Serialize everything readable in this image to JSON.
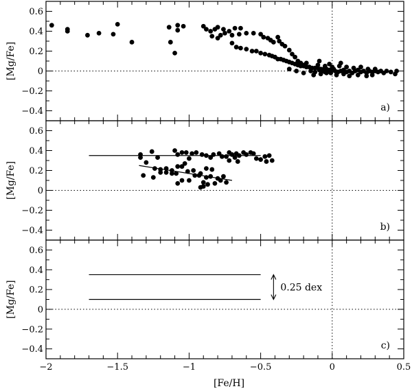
{
  "chart_data": {
    "type": "scatter",
    "xlabel": "[Fe/H]",
    "xlim": [
      -2,
      0.5
    ],
    "xticks": [
      -2,
      -1.5,
      -1,
      -0.5,
      0,
      0.5
    ],
    "xtick_labels": [
      "−2",
      "−1.5",
      "−1",
      "−0.5",
      "0",
      "0.5"
    ],
    "ref_lines": {
      "x": 0,
      "y": 0,
      "style": "dotted"
    },
    "panels": [
      {
        "label": "a)",
        "ylabel": "[Mg/Fe]",
        "ylim": [
          -0.5,
          0.7
        ],
        "yticks": [
          -0.4,
          -0.2,
          0,
          0.2,
          0.4,
          0.6
        ],
        "ytick_labels": [
          "−0.4",
          "−0.2",
          "0",
          "0.2",
          "0.4",
          "0.6"
        ],
        "points": [
          [
            -1.96,
            0.46
          ],
          [
            -1.85,
            0.42
          ],
          [
            -1.85,
            0.4
          ],
          [
            -1.71,
            0.36
          ],
          [
            -1.63,
            0.38
          ],
          [
            -1.53,
            0.37
          ],
          [
            -1.5,
            0.47
          ],
          [
            -1.4,
            0.29
          ],
          [
            -1.14,
            0.44
          ],
          [
            -1.13,
            0.29
          ],
          [
            -1.1,
            0.18
          ],
          [
            -1.08,
            0.46
          ],
          [
            -1.08,
            0.41
          ],
          [
            -1.04,
            0.45
          ],
          [
            -0.9,
            0.45
          ],
          [
            -0.88,
            0.42
          ],
          [
            -0.85,
            0.4
          ],
          [
            -0.82,
            0.42
          ],
          [
            -0.8,
            0.44
          ],
          [
            -0.76,
            0.42
          ],
          [
            -0.72,
            0.4
          ],
          [
            -0.68,
            0.43
          ],
          [
            -0.64,
            0.43
          ],
          [
            -0.6,
            0.38
          ],
          [
            -0.84,
            0.35
          ],
          [
            -0.8,
            0.33
          ],
          [
            -0.78,
            0.36
          ],
          [
            -0.75,
            0.38
          ],
          [
            -0.7,
            0.36
          ],
          [
            -0.65,
            0.37
          ],
          [
            -0.55,
            0.38
          ],
          [
            -0.5,
            0.37
          ],
          [
            -0.48,
            0.34
          ],
          [
            -0.45,
            0.33
          ],
          [
            -0.43,
            0.31
          ],
          [
            -0.41,
            0.29
          ],
          [
            -0.38,
            0.34
          ],
          [
            -0.37,
            0.3
          ],
          [
            -0.35,
            0.27
          ],
          [
            -0.33,
            0.25
          ],
          [
            -0.3,
            0.21
          ],
          [
            -0.28,
            0.17
          ],
          [
            -0.26,
            0.14
          ],
          [
            -0.24,
            0.1
          ],
          [
            -0.22,
            0.08
          ],
          [
            -0.2,
            0.06
          ],
          [
            -0.7,
            0.28
          ],
          [
            -0.67,
            0.24
          ],
          [
            -0.64,
            0.23
          ],
          [
            -0.6,
            0.22
          ],
          [
            -0.56,
            0.2
          ],
          [
            -0.53,
            0.2
          ],
          [
            -0.5,
            0.18
          ],
          [
            -0.47,
            0.17
          ],
          [
            -0.44,
            0.16
          ],
          [
            -0.42,
            0.15
          ],
          [
            -0.4,
            0.14
          ],
          [
            -0.38,
            0.12
          ],
          [
            -0.36,
            0.12
          ],
          [
            -0.34,
            0.11
          ],
          [
            -0.32,
            0.1
          ],
          [
            -0.3,
            0.09
          ],
          [
            -0.28,
            0.08
          ],
          [
            -0.26,
            0.07
          ],
          [
            -0.24,
            0.06
          ],
          [
            -0.22,
            0.05
          ],
          [
            -0.2,
            0.05
          ],
          [
            -0.18,
            0.04
          ],
          [
            -0.16,
            0.04
          ],
          [
            -0.14,
            0.03
          ],
          [
            -0.12,
            0.03
          ],
          [
            -0.1,
            0.03
          ],
          [
            -0.08,
            0.02
          ],
          [
            -0.06,
            0.02
          ],
          [
            -0.04,
            0.02
          ],
          [
            -0.02,
            0.01
          ],
          [
            -0.3,
            0.02
          ],
          [
            -0.25,
            0.0
          ],
          [
            -0.2,
            -0.02
          ],
          [
            -0.15,
            0.0
          ],
          [
            -0.12,
            -0.01
          ],
          [
            -0.09,
            0.01
          ],
          [
            -0.07,
            0.0
          ],
          [
            -0.05,
            -0.01
          ],
          [
            -0.03,
            0.0
          ],
          [
            -0.01,
            -0.02
          ],
          [
            0.0,
            0.01
          ],
          [
            0.02,
            0.0
          ],
          [
            0.04,
            -0.01
          ],
          [
            0.06,
            0.0
          ],
          [
            0.08,
            0.01
          ],
          [
            0.1,
            -0.01
          ],
          [
            0.12,
            0.0
          ],
          [
            0.14,
            -0.02
          ],
          [
            0.16,
            0.0
          ],
          [
            0.18,
            0.01
          ],
          [
            0.2,
            -0.01
          ],
          [
            0.22,
            0.0
          ],
          [
            0.24,
            -0.02
          ],
          [
            0.26,
            0.0
          ],
          [
            0.28,
            -0.01
          ],
          [
            0.3,
            0.0
          ],
          [
            0.32,
            -0.01
          ],
          [
            0.34,
            0.0
          ],
          [
            0.36,
            -0.02
          ],
          [
            0.38,
            0.0
          ],
          [
            0.41,
            -0.01
          ],
          [
            0.44,
            -0.03
          ],
          [
            0.45,
            0.0
          ],
          [
            -0.1,
            0.06
          ],
          [
            -0.05,
            0.05
          ],
          [
            0.0,
            0.04
          ],
          [
            0.05,
            0.05
          ],
          [
            0.1,
            0.04
          ],
          [
            0.15,
            0.03
          ],
          [
            0.2,
            0.04
          ],
          [
            0.25,
            0.02
          ],
          [
            0.3,
            0.02
          ],
          [
            -0.13,
            -0.04
          ],
          [
            -0.08,
            -0.03
          ],
          [
            0.03,
            -0.04
          ],
          [
            0.08,
            -0.03
          ],
          [
            0.12,
            -0.05
          ],
          [
            0.18,
            -0.04
          ],
          [
            0.24,
            -0.05
          ],
          [
            0.28,
            -0.04
          ],
          [
            -0.02,
            0.07
          ],
          [
            0.06,
            0.08
          ],
          [
            -0.18,
            0.08
          ],
          [
            -0.09,
            0.1
          ],
          [
            0.01,
            0.02
          ],
          [
            -0.04,
            -0.02
          ]
        ]
      },
      {
        "label": "b)",
        "ylabel": "[Mg/Fe]",
        "ylim": [
          -0.5,
          0.7
        ],
        "yticks": [
          -0.4,
          -0.2,
          0,
          0.2,
          0.4,
          0.6
        ],
        "ytick_labels": [
          "−0.4",
          "−0.2",
          "0",
          "0.2",
          "0.4",
          "0.6"
        ],
        "lines": [
          {
            "x": [
              -1.7,
              -0.5
            ],
            "y": [
              0.35,
              0.35
            ]
          },
          {
            "x": [
              -1.35,
              -0.7
            ],
            "y": [
              0.25,
              0.1
            ]
          }
        ],
        "points": [
          [
            -1.34,
            0.36
          ],
          [
            -1.34,
            0.33
          ],
          [
            -1.26,
            0.39
          ],
          [
            -1.22,
            0.33
          ],
          [
            -1.1,
            0.4
          ],
          [
            -1.08,
            0.36
          ],
          [
            -1.05,
            0.38
          ],
          [
            -1.02,
            0.38
          ],
          [
            -0.98,
            0.37
          ],
          [
            -0.95,
            0.38
          ],
          [
            -0.91,
            0.36
          ],
          [
            -0.88,
            0.35
          ],
          [
            -0.83,
            0.36
          ],
          [
            -0.79,
            0.37
          ],
          [
            -0.77,
            0.34
          ],
          [
            -0.74,
            0.34
          ],
          [
            -0.72,
            0.38
          ],
          [
            -0.7,
            0.36
          ],
          [
            -0.67,
            0.37
          ],
          [
            -0.65,
            0.35
          ],
          [
            -0.62,
            0.38
          ],
          [
            -0.6,
            0.36
          ],
          [
            -0.57,
            0.38
          ],
          [
            -0.55,
            0.37
          ],
          [
            -0.53,
            0.32
          ],
          [
            -0.5,
            0.31
          ],
          [
            -0.47,
            0.34
          ],
          [
            -0.46,
            0.29
          ],
          [
            -0.44,
            0.35
          ],
          [
            -0.42,
            0.3
          ],
          [
            -1.0,
            0.32
          ],
          [
            -0.85,
            0.33
          ],
          [
            -0.68,
            0.33
          ],
          [
            -0.66,
            0.29
          ],
          [
            -0.72,
            0.3
          ],
          [
            -1.3,
            0.28
          ],
          [
            -1.24,
            0.22
          ],
          [
            -1.2,
            0.21
          ],
          [
            -1.16,
            0.22
          ],
          [
            -1.12,
            0.2
          ],
          [
            -1.08,
            0.24
          ],
          [
            -1.05,
            0.24
          ],
          [
            -1.01,
            0.19
          ],
          [
            -0.97,
            0.2
          ],
          [
            -0.92,
            0.17
          ],
          [
            -0.88,
            0.13
          ],
          [
            -0.85,
            0.14
          ],
          [
            -0.8,
            0.12
          ],
          [
            -0.76,
            0.14
          ],
          [
            -1.32,
            0.15
          ],
          [
            -1.25,
            0.13
          ],
          [
            -1.16,
            0.18
          ],
          [
            -1.09,
            0.17
          ],
          [
            -1.05,
            0.1
          ],
          [
            -1.0,
            0.1
          ],
          [
            -0.96,
            0.15
          ],
          [
            -0.93,
            0.15
          ],
          [
            -0.9,
            0.08
          ],
          [
            -0.87,
            0.06
          ],
          [
            -0.92,
            0.03
          ],
          [
            -0.9,
            0.04
          ],
          [
            -0.82,
            0.07
          ],
          [
            -0.78,
            0.1
          ],
          [
            -0.74,
            0.08
          ],
          [
            -1.08,
            0.07
          ],
          [
            -1.12,
            0.17
          ],
          [
            -1.2,
            0.18
          ],
          [
            -0.84,
            0.21
          ],
          [
            -0.88,
            0.22
          ],
          [
            -1.03,
            0.27
          ]
        ]
      },
      {
        "label": "c)",
        "ylabel": "[Mg/Fe]",
        "ylim": [
          -0.5,
          0.7
        ],
        "yticks": [
          -0.4,
          -0.2,
          0,
          0.2,
          0.4,
          0.6
        ],
        "ytick_labels": [
          "−0.4",
          "−0.2",
          "0",
          "0.2",
          "0.4",
          "0.6"
        ],
        "lines": [
          {
            "x": [
              -1.7,
              -0.5
            ],
            "y": [
              0.35,
              0.35
            ]
          },
          {
            "x": [
              -1.7,
              -0.5
            ],
            "y": [
              0.1,
              0.1
            ]
          }
        ],
        "annotation": {
          "text": "0.25 dex",
          "arrow_x": -0.41,
          "arrow_y": [
            0.35,
            0.1
          ]
        }
      }
    ]
  }
}
